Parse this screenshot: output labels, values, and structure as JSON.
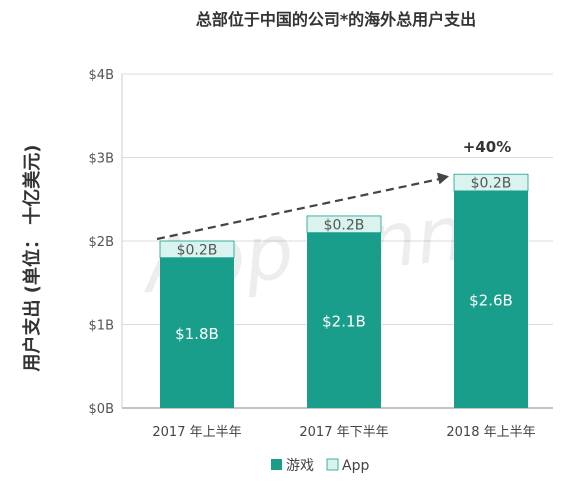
{
  "chart_data": {
    "type": "bar",
    "stacked": true,
    "title": "总部位于中国的公司*的海外总用户支出",
    "ylabel": "用户支出 (单位： 十亿美元)",
    "xlabel": "",
    "categories": [
      "2017 年上半年",
      "2017 年下半年",
      "2018 年上半年"
    ],
    "ylim": [
      0,
      4
    ],
    "yticks": [
      0,
      1,
      2,
      3,
      4
    ],
    "ytick_labels": [
      "$0B",
      "$1B",
      "$2B",
      "$3B",
      "$4B"
    ],
    "grid": true,
    "legend_position": "bottom",
    "series": [
      {
        "name": "游戏",
        "color": "#1a9e8c",
        "values": [
          1.8,
          2.1,
          2.6
        ],
        "labels": [
          "$1.8B",
          "$2.1B",
          "$2.6B"
        ]
      },
      {
        "name": "App",
        "color": "#d9f3ee",
        "values": [
          0.2,
          0.2,
          0.2
        ],
        "labels": [
          "$0.2B",
          "$0.2B",
          "$0.2B"
        ]
      }
    ],
    "annotation": "+40%",
    "watermark": "App Annie"
  }
}
